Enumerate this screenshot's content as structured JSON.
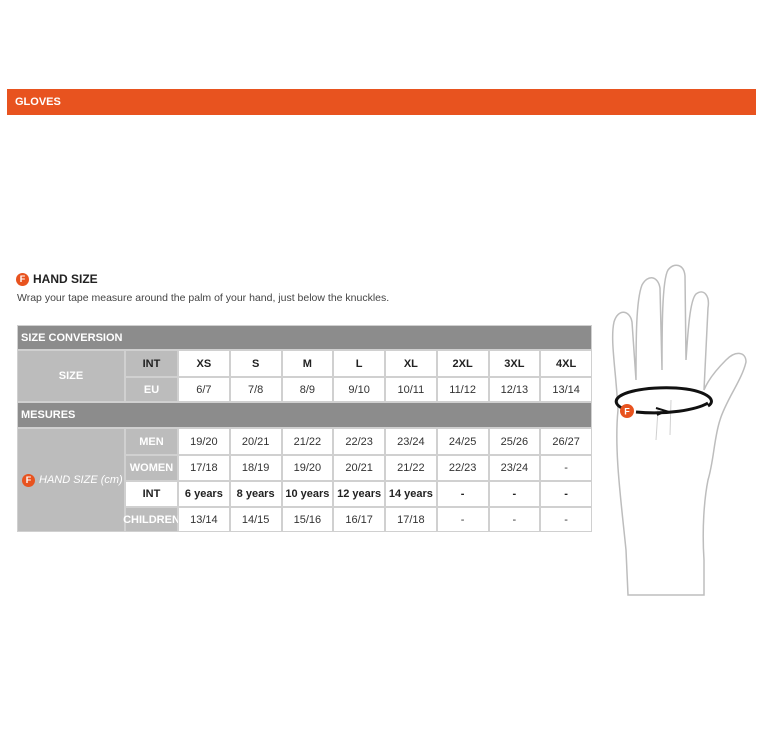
{
  "header": {
    "title": "GLOVES"
  },
  "section": {
    "icon": "F",
    "title": "HAND SIZE",
    "description": "Wrap your tape measure around the palm of your hand, just below the knuckles."
  },
  "table": {
    "conversion_header": "SIZE CONVERSION",
    "size_label": "SIZE",
    "size_rows": [
      {
        "label": "INT",
        "cells": [
          "XS",
          "S",
          "M",
          "L",
          "XL",
          "2XL",
          "3XL",
          "4XL"
        ]
      },
      {
        "label": "EU",
        "cells": [
          "6/7",
          "7/8",
          "8/9",
          "9/10",
          "10/11",
          "11/12",
          "12/13",
          "13/14"
        ]
      }
    ],
    "measures_header": "MESURES",
    "hand_icon": "F",
    "hand_label": "HAND SIZE (cm)",
    "hand_rows": [
      {
        "label": "MEN",
        "cells": [
          "19/20",
          "20/21",
          "21/22",
          "22/23",
          "23/24",
          "24/25",
          "25/26",
          "26/27"
        ]
      },
      {
        "label": "WOMEN",
        "cells": [
          "17/18",
          "18/19",
          "19/20",
          "20/21",
          "21/22",
          "22/23",
          "23/24",
          "-"
        ]
      },
      {
        "label": "INT",
        "cells": [
          "6 years",
          "8 years",
          "10 years",
          "12 years",
          "14 years",
          "-",
          "-",
          "-"
        ]
      },
      {
        "label": "CHILDREN",
        "cells": [
          "13/14",
          "14/15",
          "15/16",
          "16/17",
          "17/18",
          "-",
          "-",
          "-"
        ]
      }
    ]
  },
  "figure": {
    "icon": "F"
  }
}
